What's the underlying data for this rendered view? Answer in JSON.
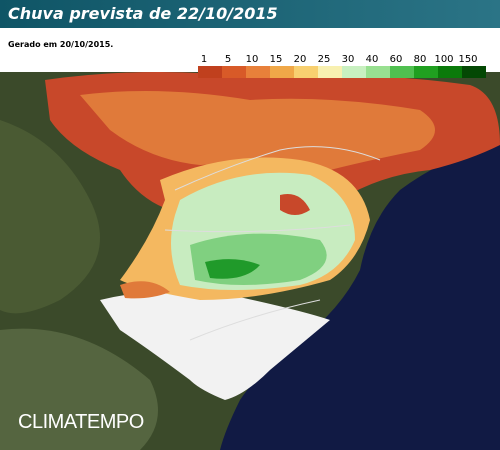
{
  "header": {
    "title": "Chuva prevista de 22/10/2015",
    "subtitle": "Gerado em 20/10/2015."
  },
  "legend": {
    "labels": [
      1,
      5,
      10,
      15,
      20,
      25,
      30,
      40,
      60,
      80,
      100,
      150
    ],
    "colors": [
      "#c0401e",
      "#d85a28",
      "#e8803a",
      "#f0a848",
      "#f8d070",
      "#f8f0b0",
      "#c8f0c0",
      "#98e090",
      "#50c050",
      "#20a020",
      "#0a7a0a",
      "#044804"
    ]
  },
  "brand": "CLIMATEMPO"
}
